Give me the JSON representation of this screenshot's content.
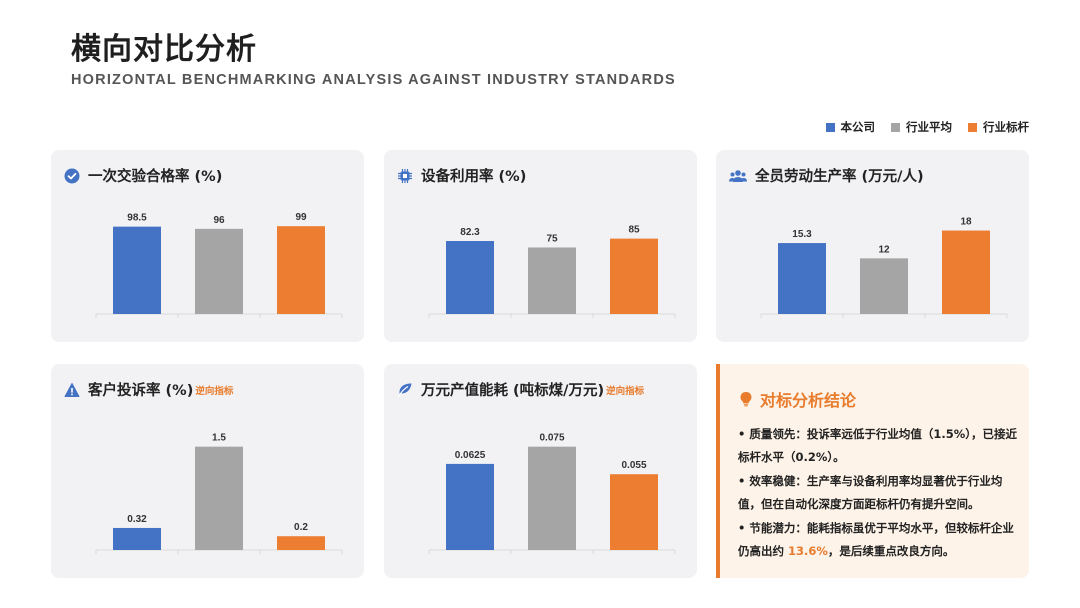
{
  "header": {
    "title": "横向对比分析",
    "subtitle": "HORIZONTAL BENCHMARKING ANALYSIS AGAINST INDUSTRY STANDARDS"
  },
  "legend": [
    {
      "label": "本公司",
      "color": "#4472c4"
    },
    {
      "label": "行业平均",
      "color": "#a5a5a5"
    },
    {
      "label": "行业标杆",
      "color": "#ed7d31"
    }
  ],
  "chart_data": [
    {
      "type": "bar",
      "title": "一次交验合格率 (%)",
      "icon": "check-circle-icon",
      "categories": [
        "本公司",
        "行业平均",
        "行业标杆"
      ],
      "values": [
        98.5,
        96,
        99
      ],
      "labels": [
        "98.5",
        "96",
        "99"
      ],
      "ylim": [
        0,
        115
      ],
      "tag": ""
    },
    {
      "type": "bar",
      "title": "设备利用率 (%)",
      "icon": "chip-icon",
      "categories": [
        "本公司",
        "行业平均",
        "行业标杆"
      ],
      "values": [
        82.3,
        75,
        85
      ],
      "labels": [
        "82.3",
        "75",
        "85"
      ],
      "ylim": [
        0,
        115
      ],
      "tag": ""
    },
    {
      "type": "bar",
      "title": "全员劳动生产率 (万元/人)",
      "icon": "users-icon",
      "categories": [
        "本公司",
        "行业平均",
        "行业标杆"
      ],
      "values": [
        15.3,
        12,
        18
      ],
      "labels": [
        "15.3",
        "12",
        "18"
      ],
      "ylim": [
        0,
        22
      ],
      "tag": ""
    },
    {
      "type": "bar",
      "title": "客户投诉率 (%)",
      "icon": "warning-icon",
      "categories": [
        "本公司",
        "行业平均",
        "行业标杆"
      ],
      "values": [
        0.32,
        1.5,
        0.2
      ],
      "labels": [
        "0.32",
        "1.5",
        "0.2"
      ],
      "ylim": [
        0,
        1.8
      ],
      "tag": "逆向指标"
    },
    {
      "type": "bar",
      "title": "万元产值能耗 (吨标煤/万元)",
      "icon": "leaf-icon",
      "categories": [
        "本公司",
        "行业平均",
        "行业标杆"
      ],
      "values": [
        0.0625,
        0.075,
        0.055
      ],
      "labels": [
        "0.0625",
        "0.075",
        "0.055"
      ],
      "ylim": [
        0,
        0.09
      ],
      "tag": "逆向指标"
    }
  ],
  "conclusion": {
    "title": "对标分析结论",
    "points": [
      {
        "pre": "• 质量领先：投诉率远低于行业均值（1.5%），已接近标杆水平（0.2%）。",
        "hl": "",
        "post": ""
      },
      {
        "pre": "• 效率稳健：生产率与设备利用率均显著优于行业均值，但在自动化深度方面距标杆仍有提升空间。",
        "hl": "",
        "post": ""
      },
      {
        "pre": "• 节能潜力：能耗指标虽优于平均水平，但较标杆企业仍高出约 ",
        "hl": "13.6%",
        "post": "，是后续重点改良方向。"
      }
    ]
  }
}
